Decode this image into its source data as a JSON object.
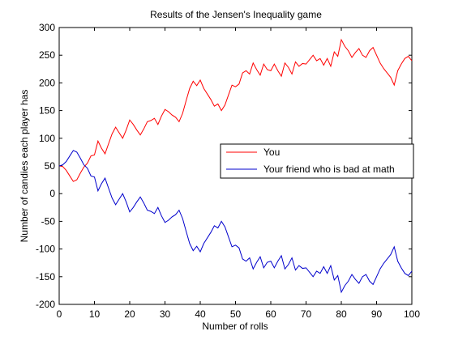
{
  "chart_data": {
    "type": "line",
    "title": "Results of the Jensen's Inequality game",
    "xlabel": "Number of rolls",
    "ylabel": "Number of candies each player has",
    "xlim": [
      0,
      100
    ],
    "ylim": [
      -200,
      300
    ],
    "xticks": [
      0,
      10,
      20,
      30,
      40,
      50,
      60,
      70,
      80,
      90,
      100
    ],
    "yticks": [
      -200,
      -150,
      -100,
      -50,
      0,
      50,
      100,
      150,
      200,
      250,
      300
    ],
    "grid": false,
    "legend_position": "center-right",
    "series": [
      {
        "name": "You",
        "color": "#ff0000",
        "x": [
          0,
          1,
          2,
          3,
          4,
          5,
          6,
          7,
          8,
          9,
          10,
          11,
          12,
          13,
          14,
          15,
          16,
          17,
          18,
          19,
          20,
          21,
          22,
          23,
          24,
          25,
          26,
          27,
          28,
          29,
          30,
          31,
          32,
          33,
          34,
          35,
          36,
          37,
          38,
          39,
          40,
          41,
          42,
          43,
          44,
          45,
          46,
          47,
          48,
          49,
          50,
          51,
          52,
          53,
          54,
          55,
          56,
          57,
          58,
          59,
          60,
          61,
          62,
          63,
          64,
          65,
          66,
          67,
          68,
          69,
          70,
          71,
          72,
          73,
          74,
          75,
          76,
          77,
          78,
          79,
          80,
          81,
          82,
          83,
          84,
          85,
          86,
          87,
          88,
          89,
          90,
          91,
          92,
          93,
          94,
          95,
          96,
          97,
          98,
          99,
          100
        ],
        "values": [
          50,
          49,
          42,
          32,
          22,
          25,
          37,
          48,
          55,
          68,
          70,
          95,
          82,
          72,
          90,
          108,
          120,
          110,
          100,
          115,
          133,
          125,
          115,
          106,
          117,
          130,
          132,
          136,
          125,
          140,
          152,
          148,
          142,
          138,
          130,
          145,
          168,
          190,
          203,
          195,
          205,
          190,
          180,
          170,
          158,
          162,
          150,
          160,
          178,
          196,
          193,
          198,
          218,
          222,
          216,
          236,
          224,
          214,
          234,
          224,
          222,
          234,
          222,
          212,
          236,
          228,
          216,
          238,
          230,
          235,
          234,
          242,
          250,
          240,
          244,
          232,
          244,
          230,
          256,
          248,
          278,
          266,
          258,
          246,
          255,
          262,
          250,
          246,
          258,
          264,
          250,
          236,
          226,
          218,
          210,
          196,
          222,
          234,
          244,
          248,
          240
        ]
      },
      {
        "name": "Your friend who is bad at math",
        "color": "#0000cc",
        "x": [
          0,
          1,
          2,
          3,
          4,
          5,
          6,
          7,
          8,
          9,
          10,
          11,
          12,
          13,
          14,
          15,
          16,
          17,
          18,
          19,
          20,
          21,
          22,
          23,
          24,
          25,
          26,
          27,
          28,
          29,
          30,
          31,
          32,
          33,
          34,
          35,
          36,
          37,
          38,
          39,
          40,
          41,
          42,
          43,
          44,
          45,
          46,
          47,
          48,
          49,
          50,
          51,
          52,
          53,
          54,
          55,
          56,
          57,
          58,
          59,
          60,
          61,
          62,
          63,
          64,
          65,
          66,
          67,
          68,
          69,
          70,
          71,
          72,
          73,
          74,
          75,
          76,
          77,
          78,
          79,
          80,
          81,
          82,
          83,
          84,
          85,
          86,
          87,
          88,
          89,
          90,
          91,
          92,
          93,
          94,
          95,
          96,
          97,
          98,
          99,
          100
        ],
        "values": [
          50,
          52,
          58,
          68,
          78,
          75,
          64,
          52,
          46,
          32,
          30,
          5,
          18,
          28,
          10,
          -8,
          -20,
          -10,
          0,
          -15,
          -33,
          -25,
          -15,
          -6,
          -17,
          -30,
          -32,
          -36,
          -25,
          -40,
          -52,
          -48,
          -42,
          -38,
          -30,
          -45,
          -68,
          -90,
          -103,
          -95,
          -105,
          -90,
          -80,
          -70,
          -58,
          -62,
          -50,
          -60,
          -78,
          -96,
          -93,
          -98,
          -118,
          -122,
          -116,
          -136,
          -124,
          -114,
          -134,
          -124,
          -122,
          -134,
          -122,
          -112,
          -136,
          -128,
          -116,
          -138,
          -130,
          -135,
          -134,
          -142,
          -150,
          -140,
          -144,
          -132,
          -144,
          -130,
          -156,
          -148,
          -178,
          -166,
          -158,
          -146,
          -155,
          -162,
          -150,
          -146,
          -158,
          -164,
          -150,
          -136,
          -126,
          -118,
          -110,
          -96,
          -122,
          -134,
          -144,
          -148,
          -140
        ]
      }
    ]
  }
}
